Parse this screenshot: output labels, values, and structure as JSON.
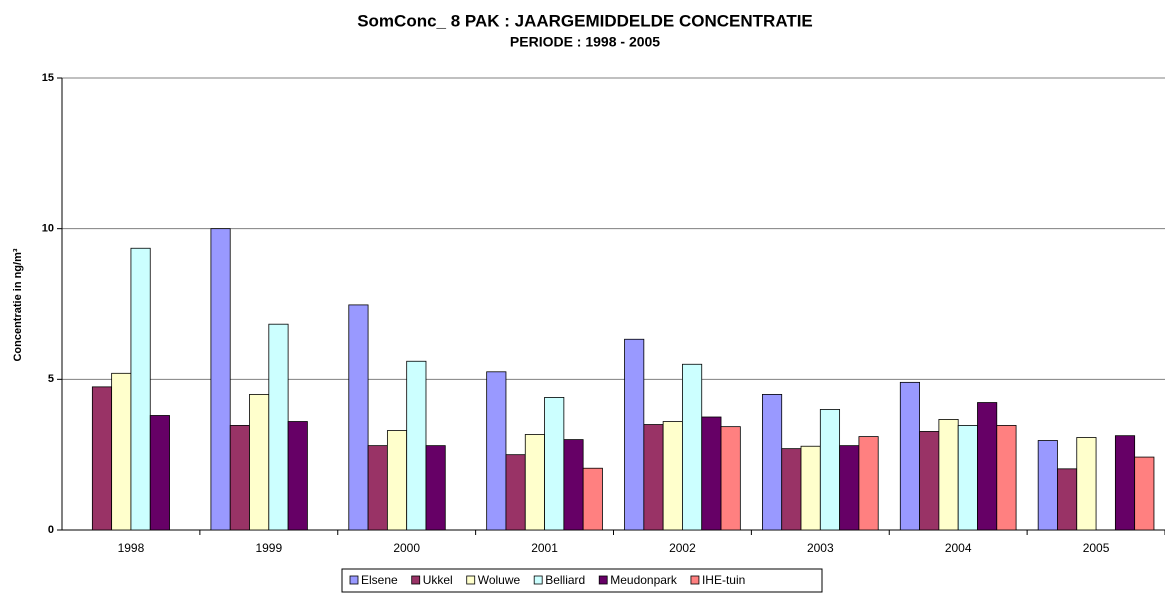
{
  "chart_data": {
    "type": "bar",
    "title": "SomConc_ 8 PAK : JAARGEMIDDELDE CONCENTRATIE",
    "subtitle": "PERIODE : 1998 - 2005",
    "y_label": "Concentratie in ng/m³",
    "categories": [
      "1998",
      "1999",
      "2000",
      "2001",
      "2002",
      "2003",
      "2004",
      "2005"
    ],
    "series": [
      {
        "name": "Elsene",
        "color": "#9999ff",
        "values": [
          null,
          10.0,
          7.47,
          5.25,
          6.33,
          4.5,
          4.9,
          2.97
        ]
      },
      {
        "name": "Ukkel",
        "color": "#993366",
        "values": [
          4.75,
          3.47,
          2.8,
          2.5,
          3.5,
          2.7,
          3.27,
          2.03
        ]
      },
      {
        "name": "Woluwe",
        "color": "#ffffcc",
        "values": [
          5.2,
          4.5,
          3.3,
          3.17,
          3.6,
          2.78,
          3.67,
          3.07
        ]
      },
      {
        "name": "Belliard",
        "color": "#ccffff",
        "values": [
          9.35,
          6.83,
          5.6,
          4.4,
          5.5,
          4.0,
          3.47,
          null
        ]
      },
      {
        "name": "Meudonpark",
        "color": "#660066",
        "values": [
          3.8,
          3.6,
          2.8,
          3.0,
          3.75,
          2.8,
          4.23,
          3.13
        ]
      },
      {
        "name": "IHE-tuin",
        "color": "#ff8080",
        "values": [
          null,
          null,
          null,
          2.05,
          3.43,
          3.1,
          3.47,
          2.42
        ]
      }
    ],
    "ylim": [
      0,
      15
    ],
    "yticks": [
      0,
      5,
      10,
      15
    ],
    "grid": true,
    "legend": "bottom"
  }
}
